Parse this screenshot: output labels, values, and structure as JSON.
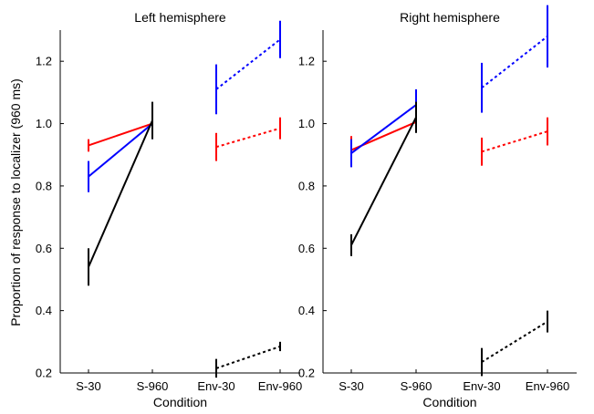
{
  "figure": {
    "ylabel": "Proportion of response to localizer (960 ms)"
  },
  "colors": {
    "red": "#ff0000",
    "blue": "#0000ff",
    "black": "#000000"
  },
  "chart_data": [
    {
      "type": "line",
      "title": "Left hemisphere",
      "xlabel": "Condition",
      "ylabel": "Proportion of response to localizer (960 ms)",
      "categories": [
        "S-30",
        "S-960",
        "Env-30",
        "Env-960"
      ],
      "ylim": [
        0.2,
        1.3
      ],
      "yticks": [
        0.2,
        0.4,
        0.6,
        0.8,
        1.0,
        1.2
      ],
      "ytick_labels": [
        "0.2",
        "0.4",
        "0.6",
        "0.8",
        "1.0",
        "1.2"
      ],
      "grid": false,
      "series": [
        {
          "color": "red",
          "style": "solid",
          "points": [
            {
              "category": "S-30",
              "y": 0.93,
              "err": 0.02
            },
            {
              "category": "S-960",
              "y": 1.0,
              "err": 0.02
            }
          ]
        },
        {
          "color": "blue",
          "style": "solid",
          "points": [
            {
              "category": "S-30",
              "y": 0.83,
              "err": 0.05
            },
            {
              "category": "S-960",
              "y": 1.0,
              "err": 0.05
            }
          ]
        },
        {
          "color": "black",
          "style": "solid",
          "points": [
            {
              "category": "S-30",
              "y": 0.54,
              "err": 0.06
            },
            {
              "category": "S-960",
              "y": 1.01,
              "err": 0.06
            }
          ]
        },
        {
          "color": "blue",
          "style": "dotted",
          "points": [
            {
              "category": "Env-30",
              "y": 1.11,
              "err": 0.08
            },
            {
              "category": "Env-960",
              "y": 1.27,
              "err": 0.06
            }
          ]
        },
        {
          "color": "red",
          "style": "dotted",
          "points": [
            {
              "category": "Env-30",
              "y": 0.925,
              "err": 0.045
            },
            {
              "category": "Env-960",
              "y": 0.985,
              "err": 0.035
            }
          ]
        },
        {
          "color": "black",
          "style": "dotted",
          "points": [
            {
              "category": "Env-30",
              "y": 0.215,
              "err": 0.03
            },
            {
              "category": "Env-960",
              "y": 0.285,
              "err": 0.015
            }
          ]
        }
      ]
    },
    {
      "type": "line",
      "title": "Right hemisphere",
      "xlabel": "Condition",
      "ylabel": "",
      "categories": [
        "S-30",
        "S-960",
        "Env-30",
        "Env-960"
      ],
      "ylim": [
        0.2,
        1.3
      ],
      "yticks": [
        0.2,
        0.4,
        0.6,
        0.8,
        1.0,
        1.2
      ],
      "ytick_labels": [
        "0.2",
        "0.4",
        "0.6",
        "0.8",
        "1.0",
        "1.2"
      ],
      "grid": false,
      "series": [
        {
          "color": "red",
          "style": "solid",
          "points": [
            {
              "category": "S-30",
              "y": 0.915,
              "err": 0.045
            },
            {
              "category": "S-960",
              "y": 1.005,
              "err": 0.03
            }
          ]
        },
        {
          "color": "blue",
          "style": "solid",
          "points": [
            {
              "category": "S-30",
              "y": 0.905,
              "err": 0.045
            },
            {
              "category": "S-960",
              "y": 1.06,
              "err": 0.05
            }
          ]
        },
        {
          "color": "black",
          "style": "solid",
          "points": [
            {
              "category": "S-30",
              "y": 0.61,
              "err": 0.035
            },
            {
              "category": "S-960",
              "y": 1.02,
              "err": 0.05
            }
          ]
        },
        {
          "color": "blue",
          "style": "dotted",
          "points": [
            {
              "category": "Env-30",
              "y": 1.115,
              "err": 0.08
            },
            {
              "category": "Env-960",
              "y": 1.28,
              "err": 0.1
            }
          ]
        },
        {
          "color": "red",
          "style": "dotted",
          "points": [
            {
              "category": "Env-30",
              "y": 0.91,
              "err": 0.045
            },
            {
              "category": "Env-960",
              "y": 0.975,
              "err": 0.045
            }
          ]
        },
        {
          "color": "black",
          "style": "dotted",
          "points": [
            {
              "category": "Env-30",
              "y": 0.235,
              "err": 0.045
            },
            {
              "category": "Env-960",
              "y": 0.365,
              "err": 0.035
            }
          ]
        }
      ]
    }
  ]
}
